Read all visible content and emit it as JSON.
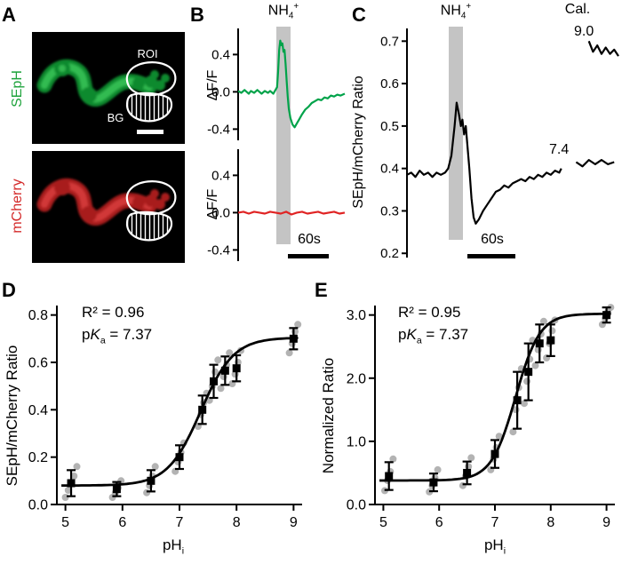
{
  "colors": {
    "seph_text": "#1fa33c",
    "mcherry_text": "#d42b2b",
    "seph_dark": "#0e8a2f",
    "seph_bright": "#3ecb5e",
    "mcherry_dark": "#a81e1e",
    "mcherry_bright": "#e34545",
    "band_gray": "#c4c4c4"
  },
  "panels": {
    "A": {
      "label": "A",
      "seph_label": "SEpH",
      "mcherry_label": "mCherry",
      "roi_label": "ROI",
      "bg_label": "BG"
    },
    "B": {
      "label": "B",
      "stim": {
        "base": "NH",
        "sub": "4",
        "sup": "+"
      },
      "scalebar": "60s"
    },
    "C": {
      "label": "C",
      "stim": {
        "base": "NH",
        "sub": "4",
        "sup": "+"
      },
      "cal_title": "Cal.",
      "cal_high": "9.0",
      "cal_low": "7.4",
      "scalebar": "60s"
    },
    "D": {
      "label": "D"
    },
    "E": {
      "label": "E"
    }
  },
  "chart_data": [
    {
      "id": "b-top",
      "type": "line",
      "ylabel": "ΔF/F",
      "margin": {
        "l": 38,
        "t": 4,
        "r": 2,
        "b": 4
      },
      "yrange": [
        -0.52,
        0.68
      ],
      "yticks": [
        {
          "v": 0.4,
          "l": "0.4"
        },
        {
          "v": 0.0,
          "l": "0.0"
        },
        {
          "v": -0.4,
          "l": "-0.4"
        }
      ],
      "stim_band": [
        0.36,
        0.49
      ],
      "series": [
        {
          "name": "SEpH dF/F",
          "color": "#00a34a",
          "points": [
            [
              0,
              0.01
            ],
            [
              0.03,
              -0.01
            ],
            [
              0.06,
              0.02
            ],
            [
              0.08,
              0
            ],
            [
              0.1,
              -0.02
            ],
            [
              0.12,
              0.01
            ],
            [
              0.15,
              -0.01
            ],
            [
              0.18,
              0.02
            ],
            [
              0.2,
              0
            ],
            [
              0.22,
              -0.02
            ],
            [
              0.25,
              0.01
            ],
            [
              0.28,
              -0.01
            ],
            [
              0.3,
              0.01
            ],
            [
              0.33,
              -0.02
            ],
            [
              0.35,
              0.02
            ],
            [
              0.365,
              0.05
            ],
            [
              0.375,
              0.22
            ],
            [
              0.385,
              0.45
            ],
            [
              0.395,
              0.55
            ],
            [
              0.405,
              0.5
            ],
            [
              0.415,
              0.52
            ],
            [
              0.425,
              0.43
            ],
            [
              0.435,
              0.45
            ],
            [
              0.445,
              0.3
            ],
            [
              0.455,
              0.12
            ],
            [
              0.465,
              -0.05
            ],
            [
              0.475,
              -0.18
            ],
            [
              0.49,
              -0.28
            ],
            [
              0.51,
              -0.35
            ],
            [
              0.53,
              -0.38
            ],
            [
              0.55,
              -0.34
            ],
            [
              0.57,
              -0.3
            ],
            [
              0.6,
              -0.24
            ],
            [
              0.63,
              -0.19
            ],
            [
              0.66,
              -0.16
            ],
            [
              0.69,
              -0.12
            ],
            [
              0.72,
              -0.1
            ],
            [
              0.75,
              -0.08
            ],
            [
              0.78,
              -0.09
            ],
            [
              0.81,
              -0.06
            ],
            [
              0.84,
              -0.07
            ],
            [
              0.87,
              -0.04
            ],
            [
              0.9,
              -0.05
            ],
            [
              0.93,
              -0.03
            ],
            [
              0.96,
              -0.04
            ],
            [
              1,
              -0.02
            ]
          ]
        }
      ]
    },
    {
      "id": "b-bottom",
      "type": "line",
      "ylabel": "ΔF/F",
      "margin": {
        "l": 38,
        "t": 4,
        "r": 2,
        "b": 4
      },
      "yrange": [
        -0.52,
        0.68
      ],
      "yticks": [
        {
          "v": 0.4,
          "l": "0.4"
        },
        {
          "v": 0.0,
          "l": "0.0"
        },
        {
          "v": -0.4,
          "l": "-0.4"
        }
      ],
      "stim_band": [
        0.36,
        0.49
      ],
      "series": [
        {
          "name": "mCherry dF/F",
          "color": "#e02424",
          "points": [
            [
              0,
              0
            ],
            [
              0.05,
              0.01
            ],
            [
              0.1,
              -0.01
            ],
            [
              0.15,
              0.01
            ],
            [
              0.2,
              0
            ],
            [
              0.25,
              -0.01
            ],
            [
              0.3,
              0.01
            ],
            [
              0.35,
              0
            ],
            [
              0.4,
              -0.01
            ],
            [
              0.45,
              0.01
            ],
            [
              0.5,
              -0.02
            ],
            [
              0.55,
              0
            ],
            [
              0.6,
              0.01
            ],
            [
              0.65,
              -0.01
            ],
            [
              0.7,
              0
            ],
            [
              0.75,
              0.01
            ],
            [
              0.8,
              -0.01
            ],
            [
              0.85,
              0
            ],
            [
              0.9,
              0.01
            ],
            [
              0.95,
              -0.01
            ],
            [
              1,
              0
            ]
          ]
        }
      ]
    },
    {
      "id": "c",
      "type": "line",
      "ylabel": "SEpH/mCherry Ratio",
      "margin": {
        "l": 48,
        "t": 4,
        "r": 2,
        "b": 6
      },
      "yrange": [
        0.19,
        0.73
      ],
      "yticks": [
        {
          "v": 0.7,
          "l": "0.7"
        },
        {
          "v": 0.6,
          "l": "0.6"
        },
        {
          "v": 0.5,
          "l": "0.5"
        },
        {
          "v": 0.4,
          "l": "0.4"
        },
        {
          "v": 0.3,
          "l": "0.3"
        },
        {
          "v": 0.2,
          "l": "0.2"
        }
      ],
      "stim_band": [
        0.197,
        0.265
      ],
      "series": [
        {
          "name": "ratio trace",
          "color": "#000000",
          "points": [
            [
              0,
              0.385
            ],
            [
              0.02,
              0.39
            ],
            [
              0.04,
              0.38
            ],
            [
              0.06,
              0.395
            ],
            [
              0.08,
              0.385
            ],
            [
              0.1,
              0.39
            ],
            [
              0.12,
              0.38
            ],
            [
              0.14,
              0.39
            ],
            [
              0.16,
              0.385
            ],
            [
              0.18,
              0.39
            ],
            [
              0.195,
              0.4
            ],
            [
              0.21,
              0.43
            ],
            [
              0.225,
              0.5
            ],
            [
              0.235,
              0.555
            ],
            [
              0.245,
              0.53
            ],
            [
              0.255,
              0.5
            ],
            [
              0.262,
              0.515
            ],
            [
              0.27,
              0.48
            ],
            [
              0.278,
              0.5
            ],
            [
              0.285,
              0.46
            ],
            [
              0.295,
              0.4
            ],
            [
              0.305,
              0.33
            ],
            [
              0.315,
              0.285
            ],
            [
              0.325,
              0.27
            ],
            [
              0.34,
              0.28
            ],
            [
              0.36,
              0.3
            ],
            [
              0.38,
              0.315
            ],
            [
              0.4,
              0.33
            ],
            [
              0.42,
              0.345
            ],
            [
              0.44,
              0.35
            ],
            [
              0.46,
              0.36
            ],
            [
              0.48,
              0.355
            ],
            [
              0.5,
              0.365
            ],
            [
              0.52,
              0.37
            ],
            [
              0.54,
              0.375
            ],
            [
              0.56,
              0.37
            ],
            [
              0.58,
              0.38
            ],
            [
              0.6,
              0.375
            ],
            [
              0.62,
              0.385
            ],
            [
              0.64,
              0.38
            ],
            [
              0.66,
              0.39
            ],
            [
              0.68,
              0.385
            ],
            [
              0.7,
              0.395
            ],
            [
              0.72,
              0.39
            ],
            [
              0.73,
              0.4
            ]
          ]
        },
        {
          "name": "calibration pH 7.4",
          "color": "#000000",
          "points": [
            [
              0.8,
              0.415
            ],
            [
              0.83,
              0.405
            ],
            [
              0.86,
              0.42
            ],
            [
              0.89,
              0.41
            ],
            [
              0.92,
              0.42
            ],
            [
              0.95,
              0.41
            ],
            [
              0.98,
              0.415
            ]
          ]
        },
        {
          "name": "calibration pH 9.0",
          "color": "#000000",
          "points": [
            [
              0.86,
              0.7
            ],
            [
              0.88,
              0.675
            ],
            [
              0.9,
              0.69
            ],
            [
              0.92,
              0.67
            ],
            [
              0.94,
              0.685
            ],
            [
              0.96,
              0.67
            ],
            [
              0.98,
              0.68
            ],
            [
              1,
              0.665
            ]
          ]
        }
      ]
    },
    {
      "id": "d",
      "type": "scatter",
      "ylabel": "SEpH/mCherry Ratio",
      "xlabel": {
        "base": "pH",
        "sub": "i"
      },
      "annotation": {
        "r2": "R² = 0.96",
        "pk": {
          "p": "p",
          "k": "K",
          "a": "a",
          "val": " = 7.37"
        }
      },
      "margin": {
        "l": 44,
        "t": 14,
        "r": 10,
        "b": 44
      },
      "xrange": [
        4.85,
        9.15
      ],
      "yrange": [
        0,
        0.84
      ],
      "xticks": [
        {
          "v": 5,
          "l": "5"
        },
        {
          "v": 6,
          "l": "6"
        },
        {
          "v": 7,
          "l": "7"
        },
        {
          "v": 8,
          "l": "8"
        },
        {
          "v": 9,
          "l": "9"
        }
      ],
      "yticks": [
        {
          "v": 0,
          "l": "0.0"
        },
        {
          "v": 0.2,
          "l": "0.2"
        },
        {
          "v": 0.4,
          "l": "0.4"
        },
        {
          "v": 0.6,
          "l": "0.6"
        },
        {
          "v": 0.8,
          "l": "0.8"
        }
      ],
      "fit": {
        "min": 0.08,
        "max": 0.705,
        "pka": 7.37,
        "hill": 1.5
      },
      "dot_color": "#a6a6a6",
      "line_color": "#000000",
      "marker_color": "#000000",
      "points": [
        {
          "x": 5.1,
          "mean": 0.09,
          "sd": 0.055,
          "reps": [
            0.03,
            0.06,
            0.09,
            0.12,
            0.16
          ]
        },
        {
          "x": 5.9,
          "mean": 0.065,
          "sd": 0.03,
          "reps": [
            0.03,
            0.05,
            0.07,
            0.1
          ]
        },
        {
          "x": 6.5,
          "mean": 0.1,
          "sd": 0.045,
          "reps": [
            0.05,
            0.08,
            0.12,
            0.16
          ]
        },
        {
          "x": 7.0,
          "mean": 0.2,
          "sd": 0.05,
          "reps": [
            0.14,
            0.18,
            0.22,
            0.26
          ]
        },
        {
          "x": 7.4,
          "mean": 0.4,
          "sd": 0.06,
          "reps": [
            0.33,
            0.38,
            0.43,
            0.47
          ]
        },
        {
          "x": 7.6,
          "mean": 0.52,
          "sd": 0.07,
          "reps": [
            0.44,
            0.5,
            0.56,
            0.61
          ]
        },
        {
          "x": 7.8,
          "mean": 0.565,
          "sd": 0.06,
          "reps": [
            0.49,
            0.54,
            0.59,
            0.64
          ]
        },
        {
          "x": 8.0,
          "mean": 0.575,
          "sd": 0.055,
          "reps": [
            0.51,
            0.55,
            0.6,
            0.65
          ]
        },
        {
          "x": 9.0,
          "mean": 0.7,
          "sd": 0.045,
          "reps": [
            0.64,
            0.68,
            0.73,
            0.76
          ]
        }
      ]
    },
    {
      "id": "e",
      "type": "scatter",
      "ylabel": "Normalized Ratio",
      "xlabel": {
        "base": "pH",
        "sub": "i"
      },
      "annotation": {
        "r2": "R² = 0.95",
        "pk": {
          "p": "p",
          "k": "K",
          "a": "a",
          "val": " = 7.37"
        }
      },
      "margin": {
        "l": 44,
        "t": 14,
        "r": 8,
        "b": 44
      },
      "xrange": [
        4.85,
        9.15
      ],
      "yrange": [
        0,
        3.15
      ],
      "xticks": [
        {
          "v": 5,
          "l": "5"
        },
        {
          "v": 6,
          "l": "6"
        },
        {
          "v": 7,
          "l": "7"
        },
        {
          "v": 8,
          "l": "8"
        },
        {
          "v": 9,
          "l": "9"
        }
      ],
      "yticks": [
        {
          "v": 0,
          "l": "0.0"
        },
        {
          "v": 1,
          "l": "1.0"
        },
        {
          "v": 2,
          "l": "2.0"
        },
        {
          "v": 3,
          "l": "3.0"
        }
      ],
      "fit": {
        "min": 0.38,
        "max": 3.02,
        "pka": 7.37,
        "hill": 2
      },
      "dot_color": "#a6a6a6",
      "line_color": "#000000",
      "marker_color": "#000000",
      "points": [
        {
          "x": 5.1,
          "mean": 0.45,
          "sd": 0.22,
          "reps": [
            0.22,
            0.38,
            0.52,
            0.72
          ]
        },
        {
          "x": 5.9,
          "mean": 0.35,
          "sd": 0.14,
          "reps": [
            0.2,
            0.3,
            0.42,
            0.55
          ]
        },
        {
          "x": 6.5,
          "mean": 0.5,
          "sd": 0.18,
          "reps": [
            0.3,
            0.45,
            0.6,
            0.74
          ]
        },
        {
          "x": 7.0,
          "mean": 0.8,
          "sd": 0.22,
          "reps": [
            0.55,
            0.72,
            0.9,
            1.08
          ]
        },
        {
          "x": 7.4,
          "mean": 1.65,
          "sd": 0.45,
          "reps": [
            1.15,
            1.5,
            1.85,
            2.15
          ]
        },
        {
          "x": 7.6,
          "mean": 2.1,
          "sd": 0.45,
          "reps": [
            1.6,
            1.95,
            2.3,
            2.6
          ]
        },
        {
          "x": 7.8,
          "mean": 2.55,
          "sd": 0.3,
          "reps": [
            2.2,
            2.45,
            2.7,
            2.9
          ]
        },
        {
          "x": 8.0,
          "mean": 2.6,
          "sd": 0.25,
          "reps": [
            2.32,
            2.55,
            2.75,
            2.92
          ]
        },
        {
          "x": 9.0,
          "mean": 3.0,
          "sd": 0.12,
          "reps": [
            2.85,
            2.95,
            3.05,
            3.12
          ]
        }
      ]
    }
  ]
}
